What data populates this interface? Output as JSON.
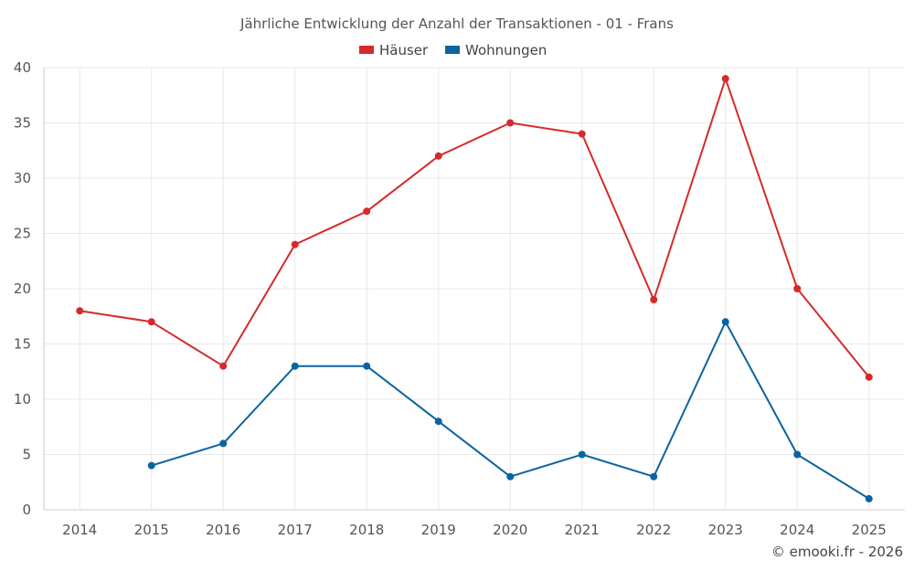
{
  "chart_data": {
    "type": "line",
    "title": "Jährliche Entwicklung der Anzahl der Transaktionen - 01 - Frans",
    "categories": [
      "2014",
      "2015",
      "2016",
      "2017",
      "2018",
      "2019",
      "2020",
      "2021",
      "2022",
      "2023",
      "2024",
      "2025"
    ],
    "series": [
      {
        "name": "Häuser",
        "color": "#d62a2a",
        "values": [
          18,
          17,
          13,
          24,
          27,
          32,
          35,
          34,
          19,
          39,
          20,
          12
        ]
      },
      {
        "name": "Wohnungen",
        "color": "#0a64a0",
        "values": [
          null,
          4,
          6,
          13,
          13,
          8,
          3,
          5,
          3,
          17,
          5,
          1
        ]
      }
    ],
    "ylim": [
      0,
      40
    ],
    "yticks": [
      0,
      5,
      10,
      15,
      20,
      25,
      30,
      35,
      40
    ],
    "ytick_labels": [
      "0",
      "5",
      "10",
      "15",
      "20",
      "25",
      "30",
      "35",
      "40"
    ],
    "xlabel": "",
    "ylabel": "",
    "legend_position": "top-center",
    "grid": true
  },
  "credit": "© emooki.fr - 2026"
}
